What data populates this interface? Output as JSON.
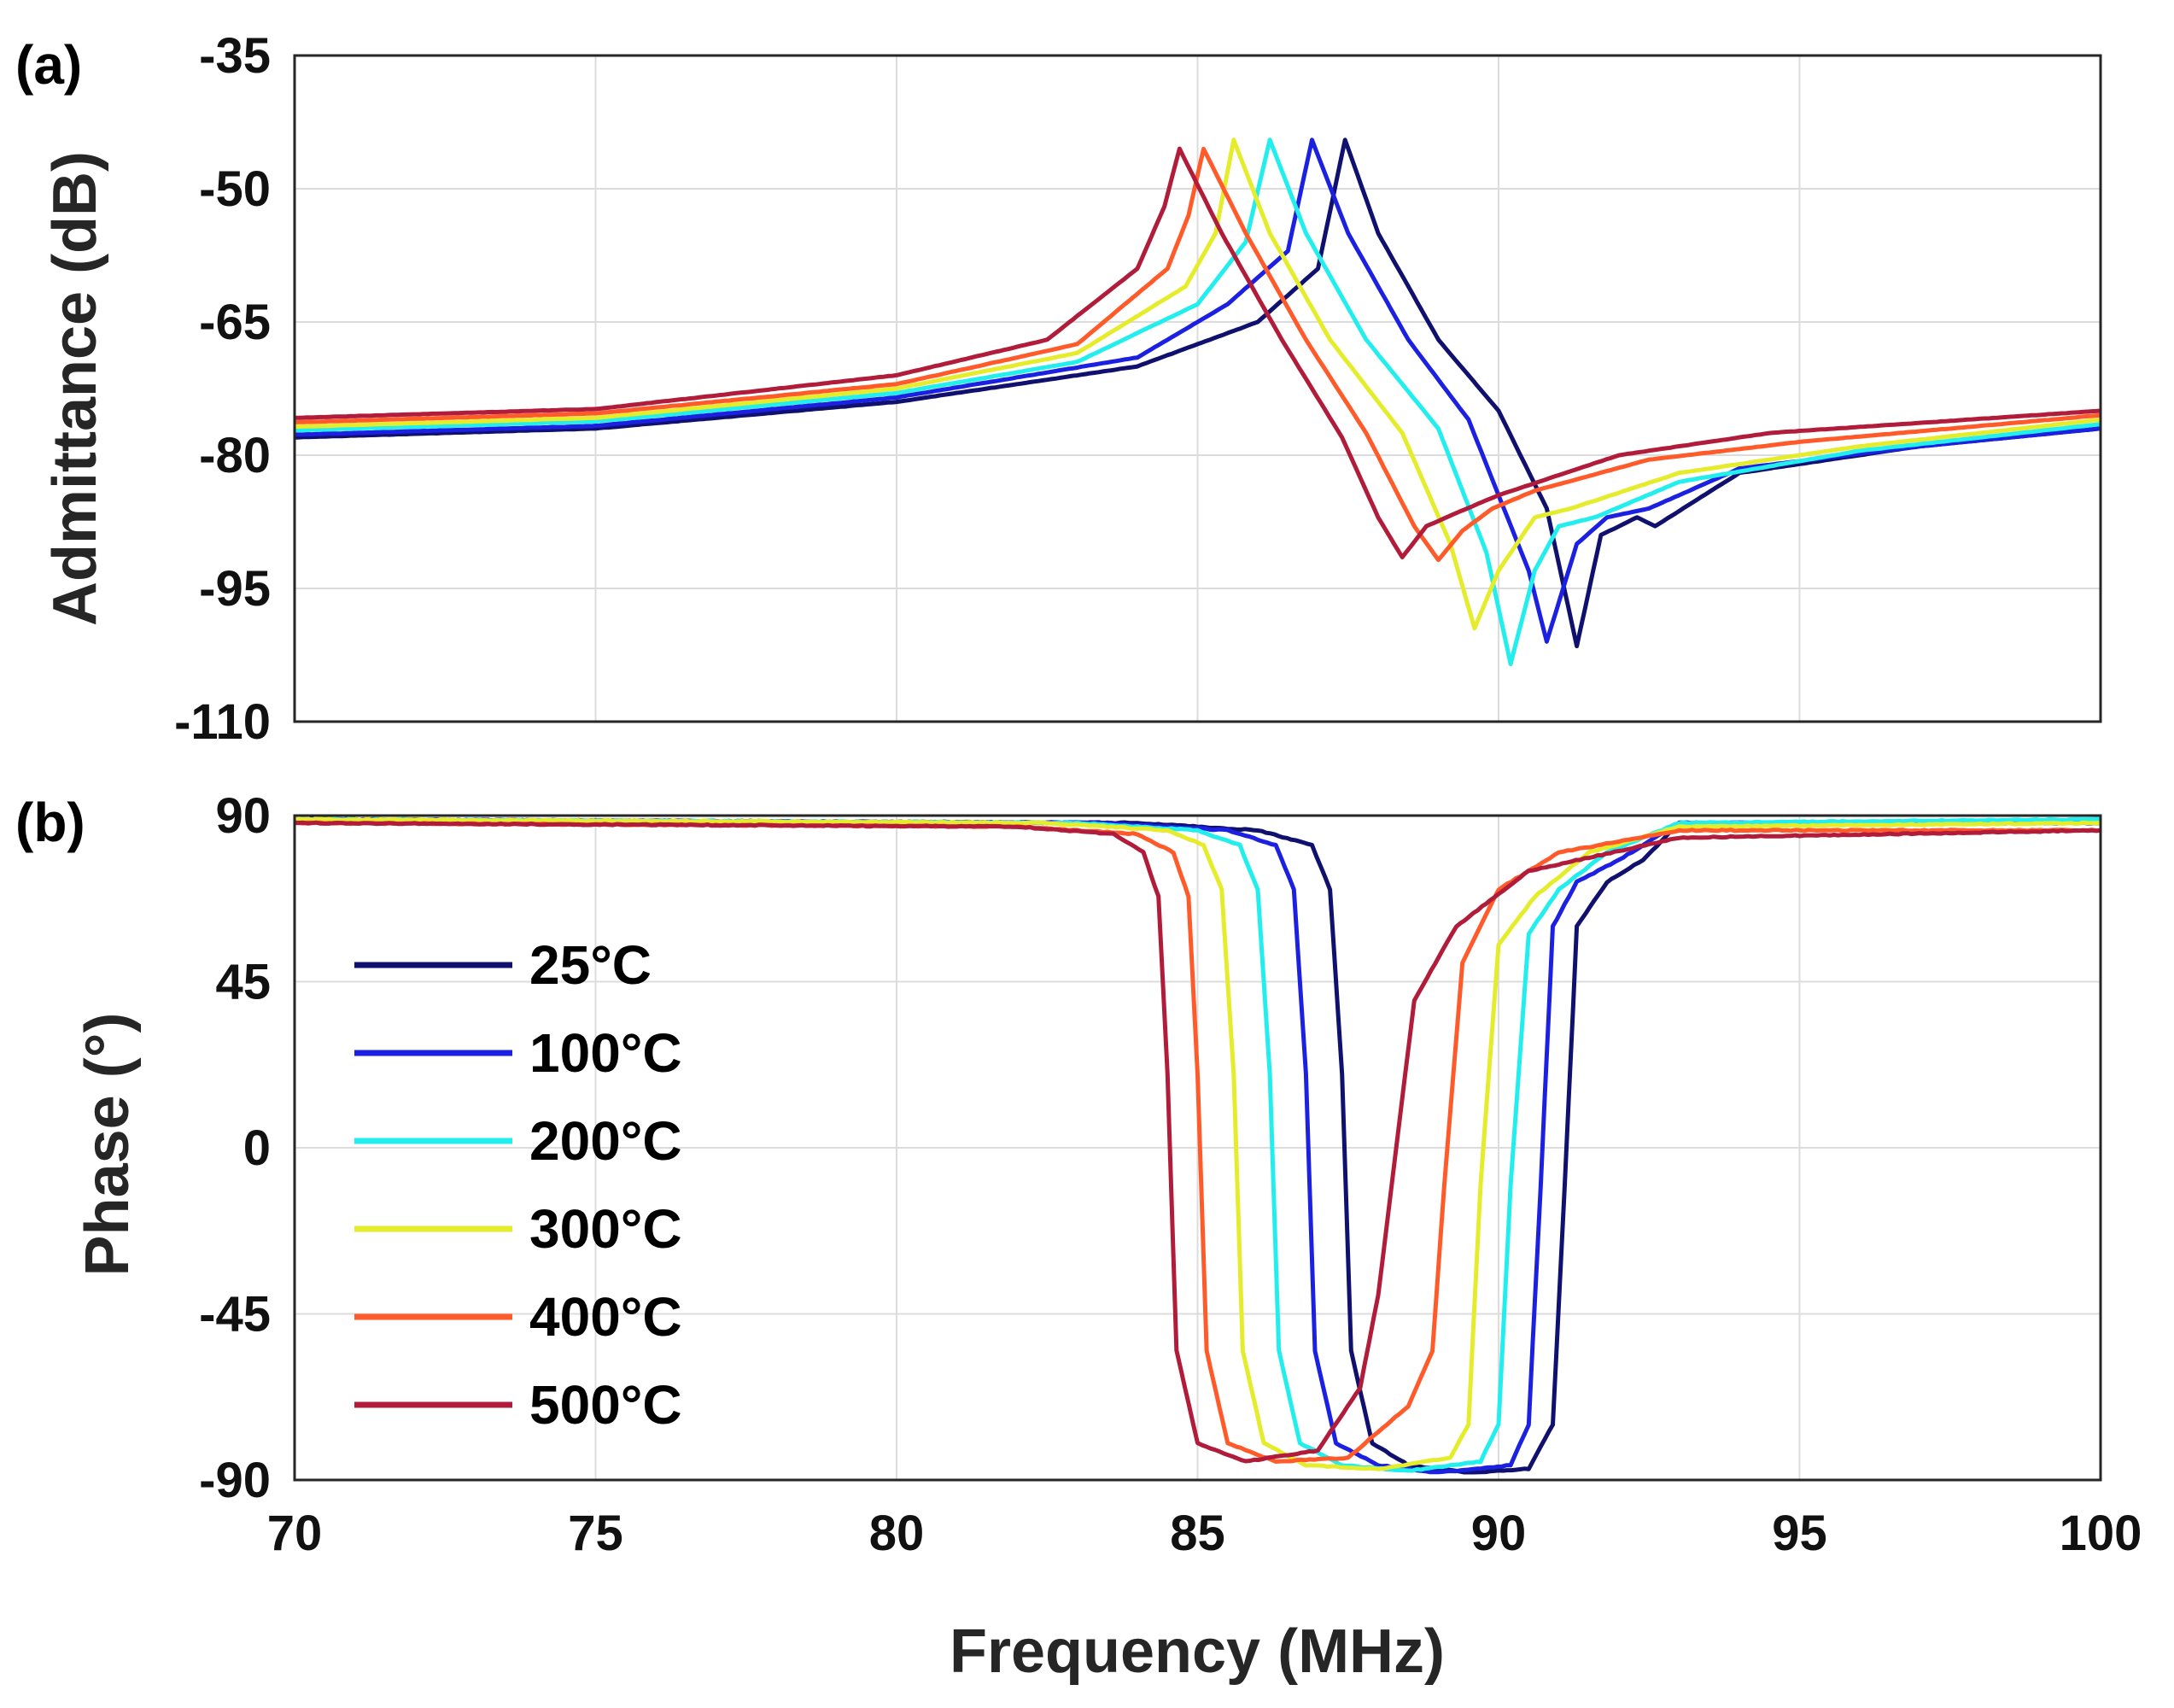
{
  "chart_data": [
    {
      "type": "line",
      "panel_label": "(a)",
      "xlabel": "",
      "ylabel": "Admittance (dB)",
      "xlim": [
        70,
        100
      ],
      "ylim": [
        -110,
        -35
      ],
      "xticks": [
        70,
        75,
        80,
        85,
        90,
        95,
        100
      ],
      "yticks": [
        -35,
        -50,
        -65,
        -80,
        -95,
        -110
      ],
      "grid": true,
      "series": [
        {
          "name": "25°C",
          "color": "#10106e",
          "x": [
            70,
            75,
            80,
            84,
            86,
            87,
            87.45,
            88,
            89,
            90,
            90.8,
            91.3,
            91.7,
            92.3,
            92.6,
            94,
            97,
            100
          ],
          "y": [
            -78,
            -77,
            -74,
            -70,
            -65,
            -59,
            -44.5,
            -55,
            -67,
            -75,
            -86,
            -101.5,
            -89,
            -87,
            -88,
            -82,
            -79,
            -77
          ]
        },
        {
          "name": "100°C",
          "color": "#1c20e0",
          "x": [
            70,
            75,
            80,
            84,
            85.5,
            86.5,
            86.9,
            87.5,
            88.5,
            89.5,
            90.5,
            90.8,
            91.3,
            91.8,
            92.5,
            94,
            97,
            100
          ],
          "y": [
            -77.7,
            -76.7,
            -73.5,
            -69,
            -63,
            -57,
            -44.5,
            -55,
            -67,
            -76,
            -93,
            -101,
            -90,
            -87,
            -86,
            -81.5,
            -79,
            -77
          ]
        },
        {
          "name": "200°C",
          "color": "#22eeee",
          "x": [
            70,
            75,
            80,
            83,
            85,
            85.8,
            86.2,
            86.8,
            87.8,
            89,
            89.8,
            90.2,
            90.6,
            91,
            91.6,
            93,
            96,
            100
          ],
          "y": [
            -77.2,
            -76.2,
            -73,
            -69.5,
            -63,
            -56,
            -44.5,
            -55,
            -67,
            -77,
            -91,
            -103.5,
            -93,
            -88,
            -87,
            -83,
            -79.5,
            -76.5
          ]
        },
        {
          "name": "300°C",
          "color": "#e4ec2c",
          "x": [
            70,
            75,
            80,
            83,
            84.8,
            85.3,
            85.6,
            86.2,
            87.2,
            88.4,
            89.2,
            89.6,
            90,
            90.6,
            91.2,
            93,
            96,
            100
          ],
          "y": [
            -76.8,
            -75.8,
            -72.5,
            -68.5,
            -61,
            -55,
            -44.5,
            -55,
            -67,
            -77.5,
            -90,
            -99.5,
            -93,
            -87,
            -86,
            -82,
            -79,
            -76
          ]
        },
        {
          "name": "400°C",
          "color": "#ff5a2a",
          "x": [
            70,
            75,
            80,
            83,
            84.5,
            84.85,
            85.1,
            85.8,
            86.8,
            87.8,
            88.6,
            89.0,
            89.4,
            89.9,
            90.6,
            92.5,
            95,
            100
          ],
          "y": [
            -76.3,
            -75.3,
            -72,
            -67.5,
            -59,
            -53,
            -45.5,
            -55,
            -67,
            -77.5,
            -88,
            -91.8,
            -88.5,
            -86,
            -84,
            -80.5,
            -78.5,
            -75.5
          ]
        },
        {
          "name": "500°C",
          "color": "#b01c3a",
          "x": [
            70,
            75,
            80,
            82.5,
            84,
            84.45,
            84.7,
            85.4,
            86.4,
            87.4,
            88.0,
            88.4,
            88.8,
            89.3,
            90,
            92,
            94.5,
            100
          ],
          "y": [
            -75.8,
            -74.8,
            -71,
            -67,
            -59,
            -52,
            -45.5,
            -55,
            -67,
            -78,
            -87,
            -91.5,
            -88,
            -86.5,
            -84.5,
            -80,
            -77.5,
            -75
          ]
        }
      ]
    },
    {
      "type": "line",
      "panel_label": "(b)",
      "xlabel": "Frequency (MHz)",
      "ylabel": "Phase (°)",
      "xlim": [
        70,
        100
      ],
      "ylim": [
        -90,
        90
      ],
      "xticks": [
        70,
        75,
        80,
        85,
        90,
        95,
        100
      ],
      "yticks": [
        90,
        45,
        0,
        -45,
        -90
      ],
      "grid": true,
      "series": [
        {
          "name": "25°C",
          "color": "#10106e",
          "x": [
            70,
            84,
            86,
            86.9,
            87.2,
            87.4,
            87.55,
            87.9,
            88.5,
            89.5,
            90.5,
            90.9,
            91.1,
            91.3,
            91.8,
            92.4,
            93,
            100
          ],
          "y": [
            89,
            88,
            86,
            82,
            70,
            20,
            -55,
            -80,
            -86,
            -88,
            -87,
            -75,
            -10,
            60,
            72,
            78,
            88,
            88
          ]
        },
        {
          "name": "100°C",
          "color": "#1c20e0",
          "x": [
            70,
            83.5,
            85.5,
            86.3,
            86.6,
            86.8,
            86.95,
            87.3,
            88,
            89,
            90.2,
            90.5,
            90.7,
            90.9,
            91.3,
            92,
            93,
            100
          ],
          "y": [
            89,
            88,
            86,
            82,
            70,
            20,
            -55,
            -80,
            -86,
            -88,
            -86,
            -75,
            -10,
            60,
            72,
            78,
            88,
            88
          ]
        },
        {
          "name": "200°C",
          "color": "#22eeee",
          "x": [
            70,
            83,
            85,
            85.7,
            86.0,
            86.2,
            86.35,
            86.7,
            87.4,
            88.5,
            89.7,
            90.0,
            90.2,
            90.5,
            91,
            91.8,
            93,
            100
          ],
          "y": [
            89,
            88,
            86,
            82,
            70,
            20,
            -55,
            -80,
            -86,
            -87.5,
            -85,
            -75,
            -10,
            58,
            70,
            80,
            88,
            89
          ]
        },
        {
          "name": "300°C",
          "color": "#e4ec2c",
          "x": [
            70,
            82.5,
            84.5,
            85.1,
            85.4,
            85.6,
            85.75,
            86.1,
            86.8,
            88,
            89.2,
            89.5,
            89.7,
            90.0,
            90.6,
            91.5,
            93,
            100
          ],
          "y": [
            89,
            88,
            86,
            82,
            70,
            20,
            -55,
            -80,
            -86,
            -87,
            -84,
            -75,
            -10,
            55,
            68,
            80,
            87,
            88
          ]
        },
        {
          "name": "400°C",
          "color": "#ff5a2a",
          "x": [
            70,
            82,
            84,
            84.6,
            84.85,
            85.0,
            85.15,
            85.5,
            86.3,
            87.5,
            88.5,
            88.9,
            89.1,
            89.4,
            90.0,
            91,
            93,
            100
          ],
          "y": [
            88,
            87,
            85,
            80,
            68,
            20,
            -55,
            -80,
            -85,
            -84,
            -70,
            -55,
            -10,
            50,
            70,
            80,
            86,
            86
          ]
        },
        {
          "name": "500°C",
          "color": "#b01c3a",
          "x": [
            70,
            82,
            83.6,
            84.1,
            84.35,
            84.5,
            84.65,
            85.0,
            85.8,
            87.0,
            87.7,
            88.0,
            88.3,
            88.6,
            89.3,
            90.5,
            93,
            100
          ],
          "y": [
            88,
            87,
            85,
            80,
            68,
            20,
            -55,
            -80,
            -85,
            -82,
            -65,
            -40,
            0,
            40,
            60,
            75,
            84,
            86
          ]
        }
      ]
    }
  ]
}
